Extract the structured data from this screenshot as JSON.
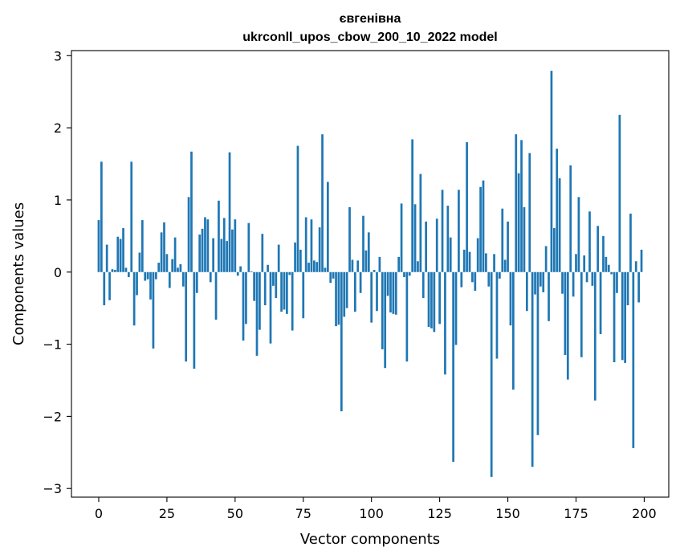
{
  "chart_data": {
    "type": "bar",
    "title": "євгенівна",
    "subtitle": "ukrconll_upos_cbow_200_10_2022 model",
    "xlabel": "Vector components",
    "ylabel": "Components values",
    "xlim": [
      -10,
      209
    ],
    "ylim": [
      -3.12,
      3.07
    ],
    "xticks": [
      0,
      25,
      50,
      75,
      100,
      125,
      150,
      175,
      200
    ],
    "yticks": [
      -3,
      -2,
      -1,
      0,
      1,
      2,
      3
    ],
    "ytick_labels": [
      "−3",
      "−2",
      "−1",
      "0",
      "1",
      "2",
      "3"
    ],
    "bar_color": "#1f77b4",
    "x": [
      0,
      1,
      2,
      3,
      4,
      5,
      6,
      7,
      8,
      9,
      10,
      11,
      12,
      13,
      14,
      15,
      16,
      17,
      18,
      19,
      20,
      21,
      22,
      23,
      24,
      25,
      26,
      27,
      28,
      29,
      30,
      31,
      32,
      33,
      34,
      35,
      36,
      37,
      38,
      39,
      40,
      41,
      42,
      43,
      44,
      45,
      46,
      47,
      48,
      49,
      50,
      51,
      52,
      53,
      54,
      55,
      56,
      57,
      58,
      59,
      60,
      61,
      62,
      63,
      64,
      65,
      66,
      67,
      68,
      69,
      70,
      71,
      72,
      73,
      74,
      75,
      76,
      77,
      78,
      79,
      80,
      81,
      82,
      83,
      84,
      85,
      86,
      87,
      88,
      89,
      90,
      91,
      92,
      93,
      94,
      95,
      96,
      97,
      98,
      99,
      100,
      101,
      102,
      103,
      104,
      105,
      106,
      107,
      108,
      109,
      110,
      111,
      112,
      113,
      114,
      115,
      116,
      117,
      118,
      119,
      120,
      121,
      122,
      123,
      124,
      125,
      126,
      127,
      128,
      129,
      130,
      131,
      132,
      133,
      134,
      135,
      136,
      137,
      138,
      139,
      140,
      141,
      142,
      143,
      144,
      145,
      146,
      147,
      148,
      149,
      150,
      151,
      152,
      153,
      154,
      155,
      156,
      157,
      158,
      159,
      160,
      161,
      162,
      163,
      164,
      165,
      166,
      167,
      168,
      169,
      170,
      171,
      172,
      173,
      174,
      175,
      176,
      177,
      178,
      179,
      180,
      181,
      182,
      183,
      184,
      185,
      186,
      187,
      188,
      189,
      190,
      191,
      192,
      193,
      194,
      195,
      196,
      197,
      198,
      199
    ],
    "values": [
      0.72,
      1.53,
      -0.46,
      0.38,
      -0.39,
      0.04,
      0.03,
      0.49,
      0.46,
      0.61,
      0.06,
      -0.07,
      1.53,
      -0.74,
      -0.32,
      0.27,
      0.72,
      -0.12,
      -0.1,
      -0.38,
      -1.06,
      -0.1,
      0.13,
      0.55,
      0.69,
      0.25,
      -0.22,
      0.18,
      0.48,
      0.06,
      0.11,
      -0.2,
      -1.24,
      1.04,
      1.67,
      -1.34,
      -0.29,
      0.52,
      0.6,
      0.76,
      0.73,
      -0.14,
      0.47,
      -0.66,
      0.99,
      0.46,
      0.75,
      0.43,
      1.66,
      0.59,
      0.73,
      -0.05,
      0.08,
      -0.95,
      -0.72,
      0.68,
      0.01,
      -0.4,
      -1.16,
      -0.8,
      0.53,
      -0.46,
      0.1,
      -0.99,
      -0.19,
      -0.36,
      0.38,
      -0.55,
      -0.52,
      -0.58,
      -0.04,
      -0.81,
      0.41,
      1.75,
      0.31,
      -0.64,
      0.76,
      0.13,
      0.73,
      0.16,
      0.14,
      0.62,
      1.91,
      0.06,
      1.25,
      -0.15,
      -0.09,
      -0.75,
      -0.73,
      -1.93,
      -0.62,
      -0.5,
      0.9,
      0.17,
      -0.55,
      0.16,
      -0.29,
      0.78,
      0.3,
      0.55,
      -0.7,
      0.03,
      -0.54,
      0.21,
      -1.07,
      -1.33,
      -0.33,
      -0.56,
      -0.58,
      -0.59,
      0.21,
      0.95,
      -0.07,
      -1.24,
      -0.05,
      1.84,
      0.94,
      0.15,
      1.36,
      -0.36,
      0.7,
      -0.76,
      -0.78,
      -0.83,
      0.74,
      -0.72,
      1.14,
      -1.42,
      0.92,
      0.48,
      -2.63,
      -1.01,
      1.14,
      -0.21,
      0.31,
      1.8,
      0.28,
      -0.14,
      -0.26,
      0.47,
      1.18,
      1.27,
      0.26,
      -0.2,
      -2.84,
      0.25,
      -1.2,
      -0.09,
      0.88,
      0.17,
      0.7,
      -0.74,
      -1.63,
      1.91,
      1.37,
      1.83,
      0.9,
      -0.54,
      1.65,
      -2.7,
      -0.31,
      -2.26,
      -0.2,
      -0.28,
      0.36,
      -0.68,
      2.79,
      0.61,
      1.71,
      1.3,
      -0.3,
      -1.15,
      -1.49,
      1.48,
      -0.34,
      0.25,
      1.04,
      -1.18,
      0.23,
      -0.14,
      0.84,
      -0.19,
      -1.78,
      0.64,
      -0.86,
      0.5,
      0.21,
      0.1,
      -0.03,
      -1.25,
      -0.29,
      2.18,
      -1.22,
      -1.26,
      -0.46,
      0.81,
      -2.44,
      0.15,
      -0.42,
      0.31
    ]
  }
}
